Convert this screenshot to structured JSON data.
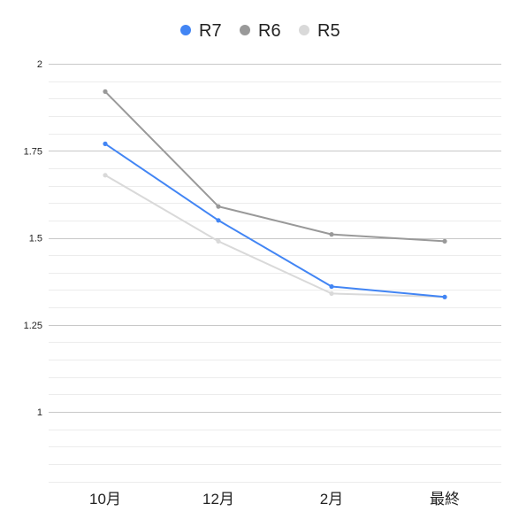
{
  "chart_data": {
    "type": "line",
    "title": "",
    "xlabel": "",
    "ylabel": "",
    "categories": [
      "10月",
      "12月",
      "2月",
      "最終"
    ],
    "ylim": [
      0.8,
      2.0
    ],
    "yticks": [
      "1",
      "1.25",
      "1.5",
      "1.75",
      "2"
    ],
    "grid": true,
    "legend_position": "top-center",
    "series": [
      {
        "name": "R7",
        "color": "#4285f4",
        "values": [
          1.77,
          1.55,
          1.36,
          1.33
        ]
      },
      {
        "name": "R6",
        "color": "#999999",
        "values": [
          1.92,
          1.59,
          1.51,
          1.49
        ]
      },
      {
        "name": "R5",
        "color": "#d9d9d9",
        "values": [
          1.68,
          1.49,
          1.34,
          1.33
        ]
      }
    ]
  }
}
